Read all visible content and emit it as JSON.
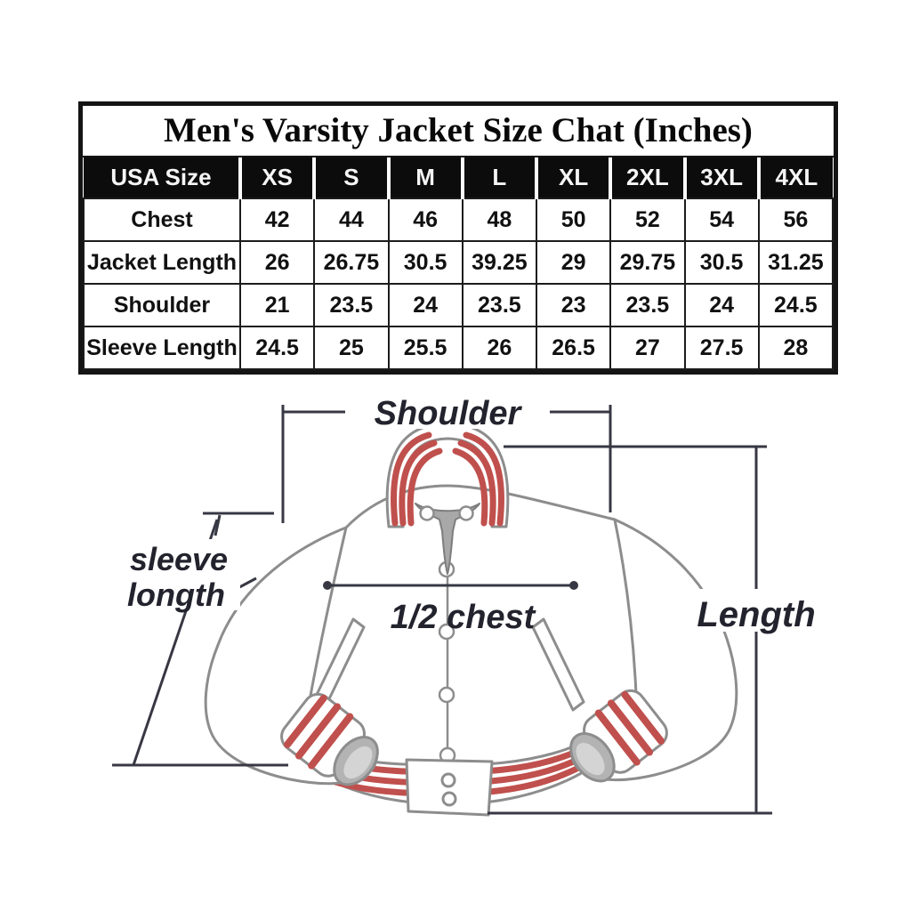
{
  "title": "Men's Varsity Jacket Size Chat (Inches)",
  "chart_data": {
    "type": "table",
    "title": "Men's Varsity Jacket Size Chat (Inches)",
    "columns": [
      "USA Size",
      "XS",
      "S",
      "M",
      "L",
      "XL",
      "2XL",
      "3XL",
      "4XL"
    ],
    "rows": [
      {
        "label": "Chest",
        "values": [
          "42",
          "44",
          "46",
          "48",
          "50",
          "52",
          "54",
          "56"
        ]
      },
      {
        "label": "Jacket Length",
        "values": [
          "26",
          "26.75",
          "30.5",
          "39.25",
          "29",
          "29.75",
          "30.5",
          "31.25"
        ]
      },
      {
        "label": "Shoulder",
        "values": [
          "21",
          "23.5",
          "24",
          "23.5",
          "23",
          "23.5",
          "24",
          "24.5"
        ]
      },
      {
        "label": "Sleeve Length",
        "values": [
          "24.5",
          "25",
          "25.5",
          "26",
          "26.5",
          "27",
          "27.5",
          "28"
        ]
      }
    ]
  },
  "diagram": {
    "labels": {
      "shoulder": "Shoulder",
      "sleeve_line1": "sleeve",
      "sleeve_line2": "longth",
      "half_chest": "1/2 chest",
      "length": "Length"
    }
  },
  "colors": {
    "stripe_red": "#c0504d",
    "jacket_outline": "#8d8d8d",
    "dimension_line": "#383844",
    "label_text": "#23232e",
    "header_bg": "#0c0c0c",
    "header_text": "#f5f5f5"
  }
}
